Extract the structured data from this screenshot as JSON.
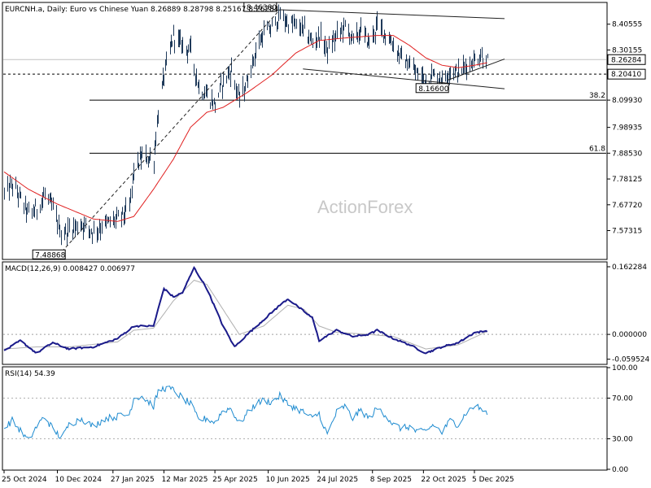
{
  "chart_data": [
    {
      "type": "candlestick",
      "title": "EURCNH.a, Daily:  Euro vs Chinese Yuan  8.26889 8.28798 8.25167 8.26284",
      "ylim": [
        7.46,
        8.49
      ],
      "y_ticks": [
        "8.40555",
        "8.30155",
        "8.09930",
        "7.98935",
        "7.88530",
        "7.78125",
        "7.67720",
        "7.57315"
      ],
      "y_tick_values": [
        8.40555,
        8.30155,
        8.0993,
        7.98935,
        7.8853,
        7.78125,
        7.6772,
        7.57315
      ],
      "current_price_label": "8.26284",
      "current_price": 8.26284,
      "level_label": "8.20410",
      "level": 8.2041,
      "fib_levels": [
        {
          "label": "38.2",
          "value": 8.0993
        },
        {
          "label": "61.8",
          "value": 7.8853
        }
      ],
      "annotations": [
        {
          "text": "8.46380",
          "x": "2025-06-20",
          "y": 8.4638
        },
        {
          "text": "7.48868",
          "x": "2024-12-14",
          "y": 7.48868
        },
        {
          "text": "8.16600",
          "x": "2025-10-24",
          "y": 8.166
        }
      ],
      "x_ticks": [
        "25 Oct 2024",
        "10 Dec 2024",
        "27 Jan 2025",
        "12 Mar 2025",
        "25 Apr 2025",
        "10 Jun 2025",
        "24 Jul 2025",
        "8 Sep 2025",
        "22 Oct 2025",
        "5 Dec 2025"
      ],
      "x_tick_dates": [
        "2024-10-25",
        "2024-12-10",
        "2025-01-27",
        "2025-03-12",
        "2025-04-25",
        "2025-06-10",
        "2025-07-24",
        "2025-09-08",
        "2025-10-22",
        "2025-12-05"
      ],
      "close_keypoints": [
        [
          "2024-10-25",
          7.72
        ],
        [
          "2024-11-01",
          7.76
        ],
        [
          "2024-11-08",
          7.7
        ],
        [
          "2024-11-15",
          7.64
        ],
        [
          "2024-11-22",
          7.66
        ],
        [
          "2024-11-29",
          7.72
        ],
        [
          "2024-12-06",
          7.66
        ],
        [
          "2024-12-14",
          7.55
        ],
        [
          "2024-12-20",
          7.58
        ],
        [
          "2024-12-31",
          7.6
        ],
        [
          "2025-01-10",
          7.57
        ],
        [
          "2025-01-20",
          7.6
        ],
        [
          "2025-01-31",
          7.62
        ],
        [
          "2025-02-10",
          7.66
        ],
        [
          "2025-02-14",
          7.82
        ],
        [
          "2025-02-21",
          7.87
        ],
        [
          "2025-03-03",
          7.86
        ],
        [
          "2025-03-07",
          8.05
        ],
        [
          "2025-03-12",
          8.2
        ],
        [
          "2025-03-20",
          8.36
        ],
        [
          "2025-03-28",
          8.32
        ],
        [
          "2025-04-04",
          8.3
        ],
        [
          "2025-04-11",
          8.15
        ],
        [
          "2025-04-18",
          8.12
        ],
        [
          "2025-04-25",
          8.08
        ],
        [
          "2025-05-02",
          8.18
        ],
        [
          "2025-05-09",
          8.22
        ],
        [
          "2025-05-16",
          8.1
        ],
        [
          "2025-05-23",
          8.18
        ],
        [
          "2025-05-30",
          8.3
        ],
        [
          "2025-06-06",
          8.37
        ],
        [
          "2025-06-13",
          8.39
        ],
        [
          "2025-06-20",
          8.44
        ],
        [
          "2025-06-27",
          8.41
        ],
        [
          "2025-07-04",
          8.4
        ],
        [
          "2025-07-11",
          8.38
        ],
        [
          "2025-07-18",
          8.33
        ],
        [
          "2025-07-24",
          8.36
        ],
        [
          "2025-07-31",
          8.3
        ],
        [
          "2025-08-08",
          8.36
        ],
        [
          "2025-08-15",
          8.4
        ],
        [
          "2025-08-22",
          8.34
        ],
        [
          "2025-08-29",
          8.38
        ],
        [
          "2025-09-05",
          8.33
        ],
        [
          "2025-09-12",
          8.4
        ],
        [
          "2025-09-19",
          8.37
        ],
        [
          "2025-09-26",
          8.32
        ],
        [
          "2025-10-03",
          8.27
        ],
        [
          "2025-10-10",
          8.24
        ],
        [
          "2025-10-17",
          8.2
        ],
        [
          "2025-10-24",
          8.19
        ],
        [
          "2025-10-31",
          8.2
        ],
        [
          "2025-11-07",
          8.18
        ],
        [
          "2025-11-14",
          8.22
        ],
        [
          "2025-11-21",
          8.21
        ],
        [
          "2025-11-28",
          8.24
        ],
        [
          "2025-12-05",
          8.26
        ],
        [
          "2025-12-10",
          8.28
        ],
        [
          "2025-12-16",
          8.26
        ]
      ],
      "ma_keypoints": [
        [
          "2024-10-25",
          7.81
        ],
        [
          "2024-11-15",
          7.74
        ],
        [
          "2024-12-10",
          7.68
        ],
        [
          "2025-01-10",
          7.62
        ],
        [
          "2025-01-31",
          7.61
        ],
        [
          "2025-02-14",
          7.63
        ],
        [
          "2025-03-03",
          7.74
        ],
        [
          "2025-03-20",
          7.86
        ],
        [
          "2025-04-04",
          7.99
        ],
        [
          "2025-04-18",
          8.05
        ],
        [
          "2025-05-02",
          8.07
        ],
        [
          "2025-05-23",
          8.13
        ],
        [
          "2025-06-13",
          8.2
        ],
        [
          "2025-07-04",
          8.29
        ],
        [
          "2025-07-24",
          8.34
        ],
        [
          "2025-08-15",
          8.35
        ],
        [
          "2025-09-12",
          8.36
        ],
        [
          "2025-09-26",
          8.36
        ],
        [
          "2025-10-10",
          8.32
        ],
        [
          "2025-10-24",
          8.27
        ],
        [
          "2025-11-07",
          8.24
        ],
        [
          "2025-11-21",
          8.23
        ],
        [
          "2025-12-05",
          8.24
        ],
        [
          "2025-12-16",
          8.25
        ]
      ],
      "trendlines": [
        {
          "from": [
            "2025-06-20",
            8.4638
          ],
          "to": [
            "2025-12-31",
            8.428
          ]
        },
        {
          "from": [
            "2025-07-10",
            8.225
          ],
          "to": [
            "2025-12-31",
            8.145
          ]
        },
        {
          "from": [
            "2025-11-12",
            8.18
          ],
          "to": [
            "2025-12-31",
            8.265
          ]
        },
        {
          "from": [
            "2024-12-14",
            7.48868
          ],
          "to": [
            "2025-06-20",
            8.4638
          ],
          "style": "dashed"
        }
      ],
      "watermark": "ActionForex"
    },
    {
      "type": "line",
      "title": "MACD(12,26,9) 0.008427 0.006977",
      "ylim": [
        -0.07,
        0.172
      ],
      "y_ticks": [
        "0.162284",
        "0.000000",
        "-0.059524"
      ],
      "y_tick_values": [
        0.162284,
        0,
        -0.059524
      ],
      "zero_line": 0,
      "series": [
        {
          "role": "main",
          "keypoints": [
            [
              "2024-10-25",
              -0.04
            ],
            [
              "2024-11-08",
              -0.015
            ],
            [
              "2024-11-22",
              -0.045
            ],
            [
              "2024-12-06",
              -0.02
            ],
            [
              "2024-12-20",
              -0.035
            ],
            [
              "2025-01-10",
              -0.03
            ],
            [
              "2025-01-31",
              -0.01
            ],
            [
              "2025-02-14",
              0.02
            ],
            [
              "2025-03-03",
              0.02
            ],
            [
              "2025-03-12",
              0.11
            ],
            [
              "2025-03-20",
              0.09
            ],
            [
              "2025-03-28",
              0.1
            ],
            [
              "2025-04-07",
              0.16
            ],
            [
              "2025-04-18",
              0.11
            ],
            [
              "2025-05-02",
              0.02
            ],
            [
              "2025-05-12",
              -0.03
            ],
            [
              "2025-05-23",
              0.0
            ],
            [
              "2025-06-06",
              0.035
            ],
            [
              "2025-06-20",
              0.07
            ],
            [
              "2025-06-27",
              0.085
            ],
            [
              "2025-07-11",
              0.055
            ],
            [
              "2025-07-18",
              0.04
            ],
            [
              "2025-07-24",
              -0.015
            ],
            [
              "2025-08-08",
              0.01
            ],
            [
              "2025-08-22",
              -0.005
            ],
            [
              "2025-09-05",
              0.0
            ],
            [
              "2025-09-12",
              0.01
            ],
            [
              "2025-09-26",
              -0.01
            ],
            [
              "2025-10-10",
              -0.025
            ],
            [
              "2025-10-24",
              -0.045
            ],
            [
              "2025-11-07",
              -0.03
            ],
            [
              "2025-11-21",
              -0.02
            ],
            [
              "2025-12-05",
              0.004
            ],
            [
              "2025-12-16",
              0.008427
            ]
          ]
        },
        {
          "role": "signal",
          "keypoints": [
            [
              "2024-10-25",
              -0.035
            ],
            [
              "2024-11-22",
              -0.03
            ],
            [
              "2024-12-20",
              -0.03
            ],
            [
              "2025-01-31",
              -0.018
            ],
            [
              "2025-02-14",
              0.01
            ],
            [
              "2025-03-03",
              0.015
            ],
            [
              "2025-03-20",
              0.08
            ],
            [
              "2025-04-07",
              0.13
            ],
            [
              "2025-04-18",
              0.12
            ],
            [
              "2025-05-02",
              0.06
            ],
            [
              "2025-05-16",
              0.0
            ],
            [
              "2025-06-06",
              0.02
            ],
            [
              "2025-06-27",
              0.07
            ],
            [
              "2025-07-11",
              0.06
            ],
            [
              "2025-07-24",
              0.02
            ],
            [
              "2025-08-08",
              0.005
            ],
            [
              "2025-09-05",
              0.0
            ],
            [
              "2025-09-26",
              -0.005
            ],
            [
              "2025-10-24",
              -0.035
            ],
            [
              "2025-11-21",
              -0.025
            ],
            [
              "2025-12-16",
              0.006977
            ]
          ]
        }
      ]
    },
    {
      "type": "line",
      "title": "RSI(14) 54.39",
      "ylim": [
        0,
        100
      ],
      "y_ticks": [
        "100.00",
        "70.00",
        "30.00",
        "0.00"
      ],
      "y_tick_values": [
        100,
        70,
        30,
        0
      ],
      "levels": [
        70,
        30
      ],
      "series": [
        {
          "role": "rsi",
          "keypoints": [
            [
              "2024-10-25",
              40
            ],
            [
              "2024-11-01",
              48
            ],
            [
              "2024-11-08",
              38
            ],
            [
              "2024-11-15",
              28
            ],
            [
              "2024-11-22",
              42
            ],
            [
              "2024-11-29",
              52
            ],
            [
              "2024-12-06",
              40
            ],
            [
              "2024-12-14",
              30
            ],
            [
              "2024-12-20",
              44
            ],
            [
              "2024-12-31",
              50
            ],
            [
              "2025-01-10",
              42
            ],
            [
              "2025-01-20",
              50
            ],
            [
              "2025-01-31",
              52
            ],
            [
              "2025-02-10",
              54
            ],
            [
              "2025-02-14",
              70
            ],
            [
              "2025-02-21",
              72
            ],
            [
              "2025-03-03",
              62
            ],
            [
              "2025-03-07",
              76
            ],
            [
              "2025-03-12",
              80
            ],
            [
              "2025-03-20",
              78
            ],
            [
              "2025-03-28",
              70
            ],
            [
              "2025-04-04",
              64
            ],
            [
              "2025-04-11",
              48
            ],
            [
              "2025-04-18",
              50
            ],
            [
              "2025-04-25",
              46
            ],
            [
              "2025-05-02",
              58
            ],
            [
              "2025-05-09",
              60
            ],
            [
              "2025-05-16",
              45
            ],
            [
              "2025-05-23",
              55
            ],
            [
              "2025-05-30",
              64
            ],
            [
              "2025-06-06",
              68
            ],
            [
              "2025-06-13",
              66
            ],
            [
              "2025-06-20",
              72
            ],
            [
              "2025-06-27",
              64
            ],
            [
              "2025-07-04",
              60
            ],
            [
              "2025-07-11",
              56
            ],
            [
              "2025-07-18",
              50
            ],
            [
              "2025-07-24",
              55
            ],
            [
              "2025-07-31",
              34
            ],
            [
              "2025-08-08",
              56
            ],
            [
              "2025-08-15",
              62
            ],
            [
              "2025-08-22",
              50
            ],
            [
              "2025-08-29",
              58
            ],
            [
              "2025-09-05",
              50
            ],
            [
              "2025-09-12",
              60
            ],
            [
              "2025-09-19",
              54
            ],
            [
              "2025-09-26",
              44
            ],
            [
              "2025-10-03",
              40
            ],
            [
              "2025-10-10",
              42
            ],
            [
              "2025-10-17",
              36
            ],
            [
              "2025-10-24",
              38
            ],
            [
              "2025-10-31",
              44
            ],
            [
              "2025-11-07",
              36
            ],
            [
              "2025-11-14",
              48
            ],
            [
              "2025-11-21",
              44
            ],
            [
              "2025-11-28",
              56
            ],
            [
              "2025-12-05",
              62
            ],
            [
              "2025-12-10",
              60
            ],
            [
              "2025-12-16",
              54.39
            ]
          ]
        }
      ]
    }
  ]
}
